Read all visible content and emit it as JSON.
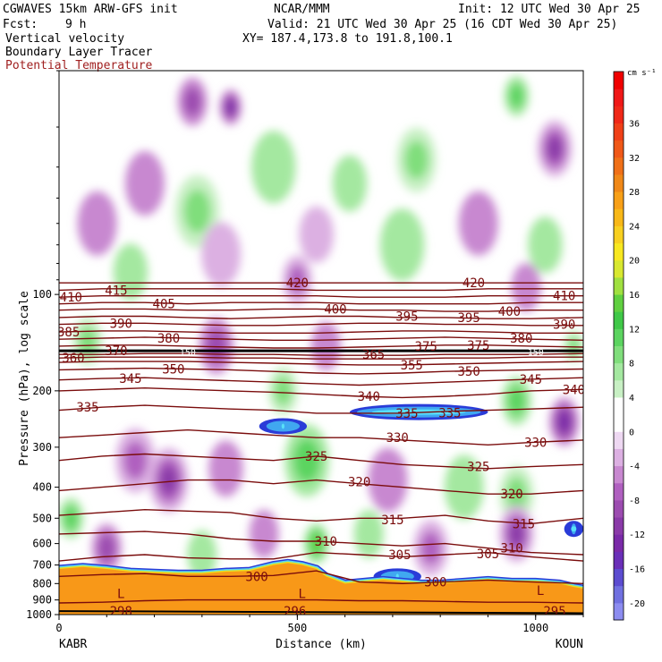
{
  "header": {
    "model": "CGWAVES 15km ARW-GFS init",
    "org": "NCAR/MMM",
    "init": "Init: 12 UTC Wed 30 Apr 25",
    "fcst_label": "Fcst:",
    "fcst_value": "9 h",
    "valid": "Valid: 21 UTC Wed 30 Apr 25 (16 CDT Wed 30 Apr 25)",
    "field1": "Vertical velocity",
    "xy": "XY= 187.4,173.8 to 191.8,100.1",
    "field2": "Boundary Layer Tracer",
    "field3": "Potential Temperature"
  },
  "chart_data": {
    "type": "heatmap",
    "xlabel": "Distance (km)",
    "ylabel": "Pressure (hPa), log scale",
    "xlim": [
      0,
      1100
    ],
    "ylim": [
      1000,
      20
    ],
    "x_ticks": [
      {
        "v": 0,
        "label": "0"
      },
      {
        "v": 500,
        "label": "500"
      },
      {
        "v": 1000,
        "label": "1000"
      }
    ],
    "y_ticks": [
      {
        "v": 100,
        "label": "100"
      },
      {
        "v": 200,
        "label": "200"
      },
      {
        "v": 300,
        "label": "300"
      },
      {
        "v": 400,
        "label": "400"
      },
      {
        "v": 500,
        "label": "500"
      },
      {
        "v": 600,
        "label": "600"
      },
      {
        "v": 700,
        "label": "700"
      },
      {
        "v": 800,
        "label": "800"
      },
      {
        "v": 900,
        "label": "900"
      },
      {
        "v": 1000,
        "label": "1000"
      }
    ],
    "endpoints": {
      "left": "KABR",
      "right": "KOUN"
    },
    "colorbar": {
      "unit": "cm s⁻¹",
      "levels": [
        -22,
        -20,
        -18,
        -16,
        -14,
        -12,
        -10,
        -8,
        -6,
        -4,
        -2,
        0,
        2,
        4,
        6,
        8,
        10,
        12,
        14,
        16,
        18,
        20,
        22,
        24,
        26,
        28,
        30,
        32,
        34,
        36,
        38,
        40,
        42
      ],
      "colors": [
        "#8c8cf0",
        "#7070e0",
        "#5c4cd0",
        "#6a2fb8",
        "#7a2aa8",
        "#8a3aa8",
        "#9c4cb0",
        "#b060c0",
        "#c888d0",
        "#dcb0e2",
        "#eed8f2",
        "#ffffff",
        "#ffffff",
        "#c8f0c4",
        "#a4e8a0",
        "#80de7c",
        "#5cd460",
        "#40c848",
        "#60d040",
        "#a0e040",
        "#d8e830",
        "#f8e820",
        "#f8d020",
        "#f8b818",
        "#f8a018",
        "#f08818",
        "#f07018",
        "#f05818",
        "#f04018",
        "#f02818",
        "#f01818",
        "#f00000"
      ],
      "tick_labels": [
        {
          "v": 36,
          "label": "36"
        },
        {
          "v": 32,
          "label": "32"
        },
        {
          "v": 28,
          "label": "28"
        },
        {
          "v": 24,
          "label": "24"
        },
        {
          "v": 20,
          "label": "20"
        },
        {
          "v": 16,
          "label": "16"
        },
        {
          "v": 12,
          "label": "12"
        },
        {
          "v": 8,
          "label": "8"
        },
        {
          "v": 4,
          "label": "4"
        },
        {
          "v": 0,
          "label": "0"
        },
        {
          "v": -4,
          "label": "-4"
        },
        {
          "v": -8,
          "label": "-8"
        },
        {
          "v": -12,
          "label": "-12"
        },
        {
          "v": -16,
          "label": "-16"
        },
        {
          "v": -20,
          "label": "-20"
        }
      ]
    },
    "theta_contours": [
      {
        "label": "295",
        "p": [
          920,
          915,
          905,
          900,
          900,
          900,
          900,
          905,
          905,
          910,
          915,
          915,
          920
        ]
      },
      {
        "label": "300",
        "p": [
          760,
          750,
          745,
          760,
          760,
          755,
          730,
          790,
          800,
          790,
          780,
          790,
          800
        ]
      },
      {
        "label": "305",
        "p": [
          680,
          660,
          650,
          665,
          670,
          670,
          640,
          650,
          660,
          650,
          640,
          660,
          680
        ]
      },
      {
        "label": "310",
        "p": [
          560,
          555,
          550,
          560,
          580,
          590,
          590,
          600,
          610,
          600,
          620,
          640,
          650
        ]
      },
      {
        "label": "315",
        "p": [
          490,
          480,
          470,
          475,
          480,
          500,
          510,
          500,
          500,
          490,
          510,
          520,
          500
        ]
      },
      {
        "label": "320",
        "p": [
          410,
          400,
          390,
          380,
          380,
          390,
          380,
          390,
          400,
          410,
          420,
          420,
          410
        ]
      },
      {
        "label": "325",
        "p": [
          330,
          320,
          315,
          320,
          325,
          330,
          320,
          330,
          340,
          345,
          350,
          345,
          340
        ]
      },
      {
        "label": "330",
        "p": [
          280,
          275,
          270,
          265,
          270,
          275,
          280,
          280,
          285,
          290,
          295,
          290,
          285
        ]
      },
      {
        "label": "335",
        "p": [
          230,
          225,
          222,
          225,
          228,
          230,
          235,
          235,
          235,
          232,
          230,
          228,
          225
        ]
      },
      {
        "label": "340",
        "p": [
          200,
          198,
          196,
          198,
          200,
          202,
          205,
          208,
          210,
          208,
          205,
          200,
          198
        ]
      },
      {
        "label": "345",
        "p": [
          185,
          183,
          182,
          184,
          186,
          188,
          190,
          192,
          190,
          188,
          186,
          184,
          182
        ]
      },
      {
        "label": "350",
        "p": [
          172,
          171,
          170,
          171,
          172,
          174,
          176,
          177,
          176,
          174,
          173,
          172,
          171
        ]
      },
      {
        "label": "355",
        "p": [
          163,
          162,
          162,
          162,
          163,
          164,
          165,
          166,
          166,
          165,
          164,
          163,
          162
        ]
      },
      {
        "label": "360",
        "p": [
          158,
          157,
          157,
          157,
          158,
          158,
          159,
          159,
          159,
          158,
          158,
          157,
          157
        ]
      },
      {
        "label": "365",
        "p": [
          154,
          154,
          153,
          153,
          154,
          154,
          155,
          155,
          155,
          154,
          154,
          154,
          153
        ]
      },
      {
        "label": "370",
        "p": [
          150,
          150,
          150,
          150,
          150,
          150,
          150,
          150,
          150,
          150,
          150,
          150,
          150
        ]
      },
      {
        "label": "375",
        "p": [
          145,
          144,
          144,
          145,
          146,
          147,
          147,
          146,
          145,
          144,
          144,
          145,
          146
        ]
      },
      {
        "label": "380",
        "p": [
          138,
          137,
          136,
          137,
          138,
          139,
          139,
          138,
          137,
          136,
          137,
          138,
          139
        ]
      },
      {
        "label": "385",
        "p": [
          131,
          130,
          130,
          131,
          132,
          132,
          132,
          131,
          130,
          130,
          131,
          132,
          132
        ]
      },
      {
        "label": "390",
        "p": [
          124,
          123,
          123,
          124,
          125,
          125,
          124,
          123,
          123,
          124,
          124,
          125,
          125
        ]
      },
      {
        "label": "395",
        "p": [
          118,
          117,
          117,
          118,
          119,
          118,
          117,
          117,
          118,
          118,
          119,
          119,
          118
        ]
      },
      {
        "label": "400",
        "p": [
          112,
          111,
          111,
          112,
          112,
          111,
          111,
          112,
          112,
          113,
          113,
          112,
          112
        ]
      },
      {
        "label": "405",
        "p": [
          107,
          106,
          106,
          107,
          106,
          106,
          106,
          107,
          107,
          107,
          107,
          106,
          106
        ]
      },
      {
        "label": "410",
        "p": [
          102,
          101,
          101,
          101,
          101,
          101,
          101,
          102,
          102,
          102,
          101,
          101,
          101
        ]
      },
      {
        "label": "415",
        "p": [
          97,
          96,
          96,
          96,
          96,
          96,
          97,
          97,
          97,
          97,
          96,
          96,
          96
        ]
      },
      {
        "label": "420",
        "p": [
          92,
          92,
          92,
          92,
          92,
          92,
          92,
          92,
          92,
          92,
          92,
          92,
          92
        ]
      }
    ],
    "theta_x": [
      0,
      90,
      180,
      270,
      360,
      450,
      540,
      630,
      720,
      810,
      900,
      990,
      1100
    ],
    "contour_labels": [
      {
        "t": "410",
        "x": 25,
        "p": 102
      },
      {
        "t": "415",
        "x": 120,
        "p": 97
      },
      {
        "t": "405",
        "x": 220,
        "p": 107
      },
      {
        "t": "420",
        "x": 500,
        "p": 92
      },
      {
        "t": "420",
        "x": 870,
        "p": 92
      },
      {
        "t": "410",
        "x": 1060,
        "p": 101
      },
      {
        "t": "390",
        "x": 130,
        "p": 123
      },
      {
        "t": "400",
        "x": 580,
        "p": 111
      },
      {
        "t": "395",
        "x": 730,
        "p": 117
      },
      {
        "t": "395",
        "x": 860,
        "p": 118
      },
      {
        "t": "400",
        "x": 945,
        "p": 113
      },
      {
        "t": "390",
        "x": 1060,
        "p": 124
      },
      {
        "t": "385",
        "x": 20,
        "p": 131
      },
      {
        "t": "380",
        "x": 230,
        "p": 137
      },
      {
        "t": "375",
        "x": 770,
        "p": 145
      },
      {
        "t": "375",
        "x": 880,
        "p": 144
      },
      {
        "t": "380",
        "x": 970,
        "p": 137
      },
      {
        "t": "370",
        "x": 120,
        "p": 150
      },
      {
        "t": "365",
        "x": 660,
        "p": 154
      },
      {
        "t": "360",
        "x": 30,
        "p": 158
      },
      {
        "t": "355",
        "x": 740,
        "p": 166
      },
      {
        "t": "350",
        "x": 240,
        "p": 171
      },
      {
        "t": "350",
        "x": 860,
        "p": 174
      },
      {
        "t": "345",
        "x": 990,
        "p": 184
      },
      {
        "t": "345",
        "x": 150,
        "p": 183
      },
      {
        "t": "340",
        "x": 650,
        "p": 208
      },
      {
        "t": "340",
        "x": 1080,
        "p": 198
      },
      {
        "t": "335",
        "x": 60,
        "p": 225
      },
      {
        "t": "335",
        "x": 730,
        "p": 235
      },
      {
        "t": "335",
        "x": 820,
        "p": 234
      },
      {
        "t": "330",
        "x": 710,
        "p": 280
      },
      {
        "t": "330",
        "x": 1000,
        "p": 290
      },
      {
        "t": "325",
        "x": 540,
        "p": 320
      },
      {
        "t": "325",
        "x": 880,
        "p": 345
      },
      {
        "t": "320",
        "x": 630,
        "p": 385
      },
      {
        "t": "320",
        "x": 950,
        "p": 420
      },
      {
        "t": "315",
        "x": 700,
        "p": 505
      },
      {
        "t": "315",
        "x": 975,
        "p": 520
      },
      {
        "t": "310",
        "x": 560,
        "p": 590
      },
      {
        "t": "310",
        "x": 950,
        "p": 620
      },
      {
        "t": "305",
        "x": 715,
        "p": 650
      },
      {
        "t": "305",
        "x": 900,
        "p": 645
      },
      {
        "t": "300",
        "x": 415,
        "p": 760
      },
      {
        "t": "300",
        "x": 790,
        "p": 790
      },
      {
        "t": "298",
        "x": 130,
        "p": 975
      },
      {
        "t": "296",
        "x": 495,
        "p": 975
      },
      {
        "t": "295",
        "x": 1040,
        "p": 975
      },
      {
        "t": "150",
        "x": 270,
        "p": 150
      },
      {
        "t": "150",
        "x": 1000,
        "p": 150
      }
    ],
    "low_labels": [
      {
        "t": "L",
        "x": 130,
        "p": 860
      },
      {
        "t": "L",
        "x": 510,
        "p": 860
      },
      {
        "t": "L",
        "x": 1010,
        "p": 840
      }
    ],
    "terrain_p": [
      [
        0,
        720
      ],
      [
        50,
        710
      ],
      [
        100,
        720
      ],
      [
        150,
        735
      ],
      [
        200,
        740
      ],
      [
        250,
        745
      ],
      [
        300,
        745
      ],
      [
        350,
        735
      ],
      [
        400,
        730
      ],
      [
        450,
        700
      ],
      [
        480,
        690
      ],
      [
        510,
        700
      ],
      [
        540,
        720
      ],
      [
        560,
        760
      ],
      [
        600,
        800
      ],
      [
        640,
        790
      ],
      [
        680,
        780
      ],
      [
        720,
        790
      ],
      [
        760,
        800
      ],
      [
        800,
        800
      ],
      [
        850,
        790
      ],
      [
        900,
        780
      ],
      [
        950,
        790
      ],
      [
        1000,
        790
      ],
      [
        1050,
        800
      ],
      [
        1080,
        820
      ],
      [
        1100,
        830
      ]
    ],
    "blue_streaks": [
      {
        "x": [
          610,
          900
        ],
        "p": 233
      },
      {
        "x": [
          420,
          520
        ],
        "p": 258
      },
      {
        "x": [
          660,
          760
        ],
        "p": 760
      },
      {
        "x": [
          1060,
          1100
        ],
        "p": 540
      }
    ],
    "vv_blobs": [
      {
        "x": 280,
        "p": 25,
        "v": -10,
        "r": 30
      },
      {
        "x": 360,
        "p": 26,
        "v": -14,
        "r": 22
      },
      {
        "x": 1040,
        "p": 35,
        "v": -12,
        "r": 35
      },
      {
        "x": 960,
        "p": 24,
        "v": 10,
        "r": 25
      },
      {
        "x": 750,
        "p": 38,
        "v": 8,
        "r": 40
      },
      {
        "x": 610,
        "p": 45,
        "v": 6,
        "r": 35
      },
      {
        "x": 180,
        "p": 45,
        "v": -6,
        "r": 40
      },
      {
        "x": 290,
        "p": 55,
        "v": 8,
        "r": 45
      },
      {
        "x": 450,
        "p": 40,
        "v": 6,
        "r": 45
      },
      {
        "x": 80,
        "p": 60,
        "v": -6,
        "r": 40
      },
      {
        "x": 880,
        "p": 60,
        "v": -6,
        "r": 40
      },
      {
        "x": 540,
        "p": 65,
        "v": -4,
        "r": 35
      },
      {
        "x": 720,
        "p": 70,
        "v": 6,
        "r": 45
      },
      {
        "x": 1020,
        "p": 70,
        "v": 6,
        "r": 35
      },
      {
        "x": 340,
        "p": 75,
        "v": -4,
        "r": 40
      },
      {
        "x": 150,
        "p": 85,
        "v": 6,
        "r": 35
      },
      {
        "x": 500,
        "p": 90,
        "v": -8,
        "r": 30
      },
      {
        "x": 980,
        "p": 95,
        "v": -6,
        "r": 30
      },
      {
        "x": 330,
        "p": 145,
        "v": -10,
        "r": 35
      },
      {
        "x": 60,
        "p": 140,
        "v": 8,
        "r": 30
      },
      {
        "x": 560,
        "p": 145,
        "v": -6,
        "r": 30
      },
      {
        "x": 1080,
        "p": 145,
        "v": 8,
        "r": 20
      },
      {
        "x": 470,
        "p": 200,
        "v": 8,
        "r": 30
      },
      {
        "x": 960,
        "p": 215,
        "v": 10,
        "r": 30
      },
      {
        "x": 1060,
        "p": 250,
        "v": -14,
        "r": 30
      },
      {
        "x": 160,
        "p": 330,
        "v": -8,
        "r": 40
      },
      {
        "x": 230,
        "p": 380,
        "v": -12,
        "r": 40
      },
      {
        "x": 520,
        "p": 330,
        "v": 10,
        "r": 45
      },
      {
        "x": 350,
        "p": 350,
        "v": -6,
        "r": 35
      },
      {
        "x": 690,
        "p": 380,
        "v": -6,
        "r": 40
      },
      {
        "x": 850,
        "p": 400,
        "v": 6,
        "r": 40
      },
      {
        "x": 960,
        "p": 420,
        "v": 8,
        "r": 35
      },
      {
        "x": 540,
        "p": 600,
        "v": 14,
        "r": 25
      },
      {
        "x": 960,
        "p": 560,
        "v": -12,
        "r": 35
      },
      {
        "x": 25,
        "p": 500,
        "v": 10,
        "r": 25
      },
      {
        "x": 100,
        "p": 620,
        "v": -10,
        "r": 30
      },
      {
        "x": 300,
        "p": 650,
        "v": 6,
        "r": 30
      },
      {
        "x": 780,
        "p": 620,
        "v": -8,
        "r": 35
      },
      {
        "x": 650,
        "p": 560,
        "v": 6,
        "r": 30
      },
      {
        "x": 430,
        "p": 560,
        "v": -6,
        "r": 30
      }
    ]
  }
}
